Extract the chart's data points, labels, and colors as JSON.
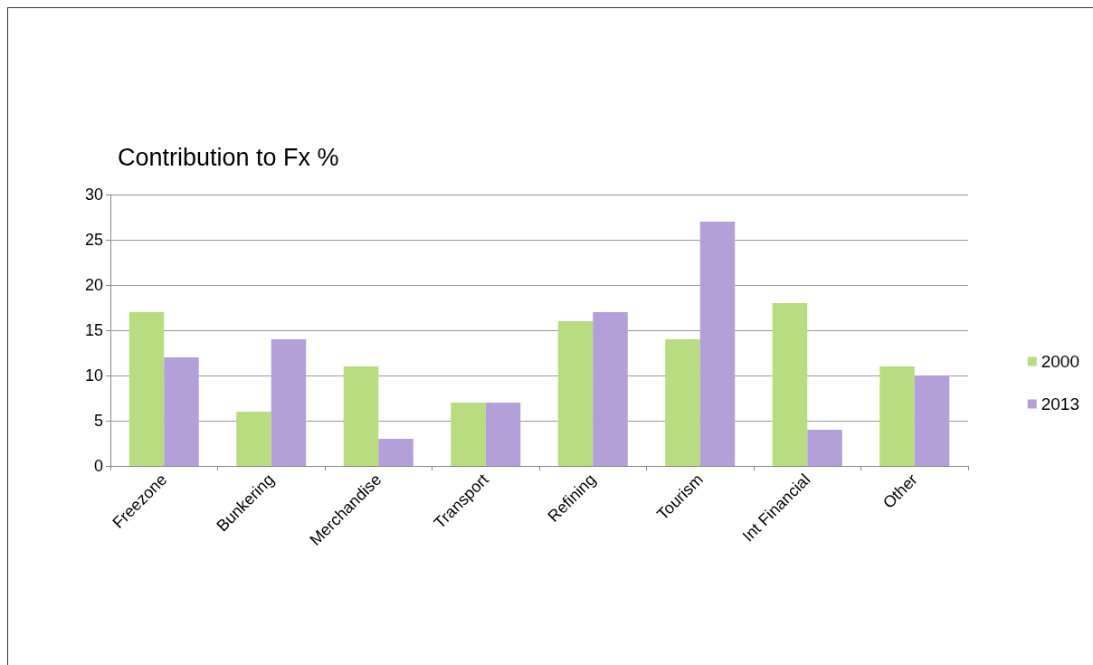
{
  "chart_data": {
    "type": "bar",
    "title": "Contribution to Fx %",
    "categories": [
      "Freezone",
      "Bunkering",
      "Merchandise",
      "Transport",
      "Refining",
      "Tourism",
      "Int Financial",
      "Other"
    ],
    "series": [
      {
        "name": "2000",
        "color": "#b8dc80",
        "values": [
          17,
          6,
          11,
          7,
          16,
          14,
          18,
          11
        ]
      },
      {
        "name": "2013",
        "color": "#b49fd8",
        "values": [
          12,
          14,
          3,
          7,
          17,
          27,
          4,
          10
        ]
      }
    ],
    "ylim": [
      0,
      30
    ],
    "yticks": [
      0,
      5,
      10,
      15,
      20,
      25,
      30
    ],
    "grid": "y",
    "legend": "right"
  }
}
